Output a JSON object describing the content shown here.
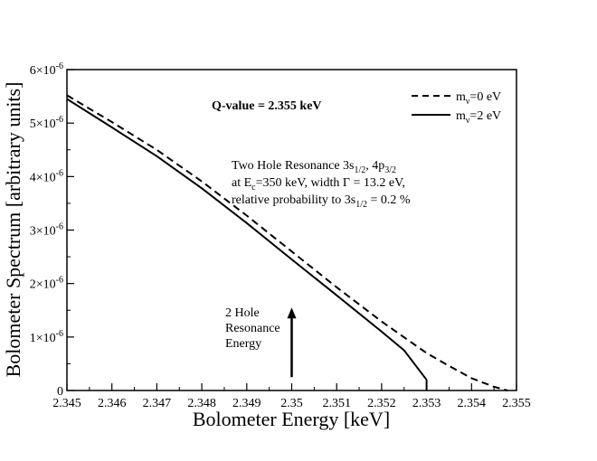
{
  "chart_data": {
    "type": "line",
    "xlabel": "Bolometer Energy [keV]",
    "ylabel": "Bolometer Spectrum [arbitrary units]",
    "xlim": [
      2.345,
      2.355
    ],
    "ylim": [
      0,
      6e-06
    ],
    "x_ticks": [
      2.345,
      2.346,
      2.347,
      2.348,
      2.349,
      2.35,
      2.351,
      2.352,
      2.353,
      2.354,
      2.355
    ],
    "x_tick_labels": [
      "2.345",
      "2.346",
      "2.347",
      "2.348",
      "2.349",
      "2.35",
      "2.351",
      "2.352",
      "2.353",
      "2.354",
      "2.355"
    ],
    "y_ticks": [
      0,
      1e-06,
      2e-06,
      3e-06,
      4e-06,
      5e-06,
      6e-06
    ],
    "y_tick_labels": [
      {
        "base": "0",
        "exp": ""
      },
      {
        "base": "1×10",
        "exp": "-6"
      },
      {
        "base": "2×10",
        "exp": "-6"
      },
      {
        "base": "3×10",
        "exp": "-6"
      },
      {
        "base": "4×10",
        "exp": "-6"
      },
      {
        "base": "5×10",
        "exp": "-6"
      },
      {
        "base": "6×10",
        "exp": "-6"
      }
    ],
    "grid": false,
    "legend_position": "top-right",
    "series": [
      {
        "name_main": "m",
        "name_sub": "ν",
        "name_rest": "=0 eV",
        "style": "dashed",
        "color": "#000000",
        "x": [
          2.345,
          2.346,
          2.347,
          2.348,
          2.349,
          2.35,
          2.351,
          2.352,
          2.353,
          2.3535,
          2.354,
          2.3545,
          2.3548
        ],
        "y": [
          5.52e-06,
          5.02e-06,
          4.5e-06,
          3.91e-06,
          3.27e-06,
          2.6e-06,
          1.93e-06,
          1.29e-06,
          7e-07,
          4.6e-07,
          2.3e-07,
          7e-08,
          0.0
        ]
      },
      {
        "name_main": "m",
        "name_sub": "ν",
        "name_rest": "=2 eV",
        "style": "solid",
        "color": "#000000",
        "x": [
          2.345,
          2.346,
          2.347,
          2.348,
          2.349,
          2.35,
          2.351,
          2.352,
          2.3525,
          2.353
        ],
        "y": [
          5.45e-06,
          4.92e-06,
          4.38e-06,
          3.78e-06,
          3.13e-06,
          2.45e-06,
          1.78e-06,
          1.1e-06,
          7.5e-07,
          2e-07
        ]
      }
    ],
    "annotations": {
      "qvalue": "Q-value = 2.355 keV",
      "resonance_line1": {
        "t1": "Two Hole Resonance 3s",
        "s1": "1/2",
        "t2": ", 4p",
        "s2": "3/2"
      },
      "resonance_line2": {
        "t1": "at E",
        "s1": "c",
        "t2": "=350 keV, width Γ = 13.2 eV,"
      },
      "resonance_line3": {
        "t1": "relative probability to 3s",
        "s1": "1/2",
        "t2": " = 0.2 %"
      },
      "arrow_label": [
        "2 Hole",
        "Resonance",
        "Energy"
      ],
      "arrow_x": 2.35,
      "arrow_y_from": 2.5e-07,
      "arrow_y_to": 1.55e-06
    }
  }
}
